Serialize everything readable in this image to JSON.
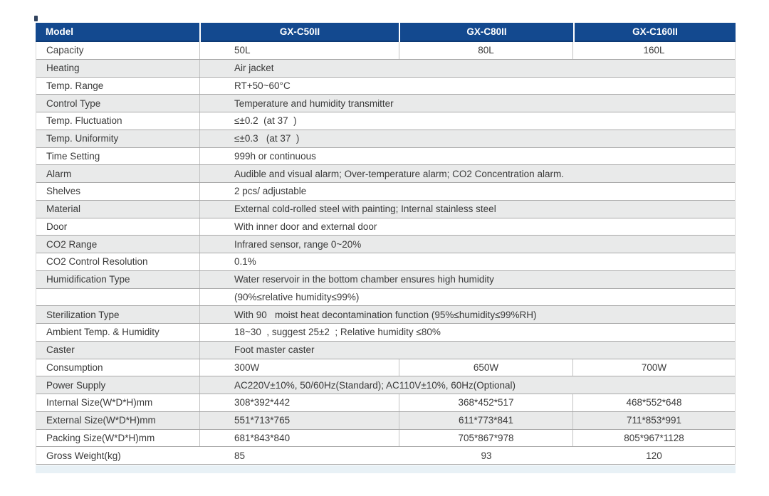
{
  "colors": {
    "header_bg": "#13498f",
    "header_text": "#ffffff",
    "row_shade": "#e9eaea",
    "row_white": "#ffffff",
    "horizontal_border": "#a9a9a9",
    "vertical_border": "#c2c2c2",
    "body_text": "#3a3a3a",
    "bottom_band": "#e8f1f6"
  },
  "table": {
    "header": {
      "label": "Model",
      "models": [
        "GX-C50II",
        "GX-C80II",
        "GX-C160II"
      ]
    },
    "rows": [
      {
        "label": "Capacity",
        "values": [
          "50L",
          "80L",
          "160L"
        ]
      },
      {
        "label": "Heating",
        "value": "Air jacket"
      },
      {
        "label": "Temp. Range",
        "value": "RT+50~60°C"
      },
      {
        "label": "Control Type",
        "value": "Temperature and humidity transmitter"
      },
      {
        "label": "Temp. Fluctuation",
        "value": "≤±0.2  (at 37  )"
      },
      {
        "label": "Temp. Uniformity",
        "value": "≤±0.3   (at 37  )"
      },
      {
        "label": "Time Setting",
        "value": "999h or continuous"
      },
      {
        "label": "Alarm",
        "value": "Audible and visual alarm; Over-temperature alarm; CO2 Concentration alarm."
      },
      {
        "label": "Shelves",
        "value": "2 pcs/ adjustable"
      },
      {
        "label": "Material",
        "value": "External cold-rolled steel with painting; Internal stainless steel"
      },
      {
        "label": "Door",
        "value": "With inner door and external door"
      },
      {
        "label": "CO2 Range",
        "value": "Infrared sensor, range 0~20%"
      },
      {
        "label": "CO2 Control Resolution",
        "value": "0.1%"
      },
      {
        "label": "Humidification Type",
        "value": "Water reservoir in the bottom chamber ensures high humidity"
      },
      {
        "label": "",
        "value": "(90%≤relative humidity≤99%)"
      },
      {
        "label": "Sterilization Type",
        "value": "With 90   moist heat decontamination function (95%≤humidity≤99%RH)"
      },
      {
        "label": "Ambient Temp. & Humidity",
        "value": "18~30  , suggest 25±2  ; Relative humidity ≤80%"
      },
      {
        "label": "Caster",
        "value": "Foot master caster"
      },
      {
        "label": "Consumption",
        "values": [
          "300W",
          "650W",
          "700W"
        ]
      },
      {
        "label": "Power Supply",
        "value": "AC220V±10%, 50/60Hz(Standard); AC110V±10%, 60Hz(Optional)"
      },
      {
        "label": "Internal Size(W*D*H)mm",
        "values": [
          "308*392*442",
          "368*452*517",
          "468*552*648"
        ]
      },
      {
        "label": "External Size(W*D*H)mm",
        "values": [
          "551*713*765",
          "611*773*841",
          "711*853*991"
        ]
      },
      {
        "label": "Packing Size(W*D*H)mm",
        "values": [
          "681*843*840",
          "705*867*978",
          "805*967*1128"
        ]
      },
      {
        "label": "Gross Weight(kg)",
        "values": [
          "85",
          "93",
          "120"
        ]
      }
    ]
  }
}
